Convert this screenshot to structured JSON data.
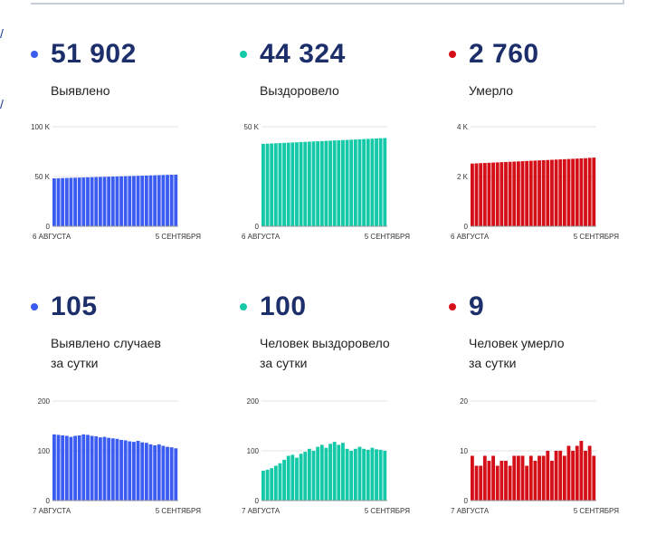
{
  "panels": [
    {
      "value": "51 902",
      "label": [
        "Выявлено"
      ],
      "color": "#3b5cf0",
      "chart_data": {
        "type": "bar",
        "title": "Выявлено",
        "yticks": [
          "100 K",
          "50 K",
          "0"
        ],
        "ylim": [
          0,
          100000
        ],
        "xstart": "6 АВГУСТА",
        "xend": "5 СЕНТЯБРЯ",
        "values": [
          48150,
          48280,
          48410,
          48540,
          48670,
          48800,
          48930,
          49060,
          49190,
          49320,
          49450,
          49580,
          49710,
          49840,
          49970,
          50100,
          50230,
          50360,
          50490,
          50620,
          50750,
          50880,
          51010,
          51140,
          51270,
          51400,
          51530,
          51660,
          51800,
          51902
        ]
      }
    },
    {
      "value": "44 324",
      "label": [
        "Выздоровело"
      ],
      "color": "#13c9a7",
      "chart_data": {
        "type": "bar",
        "title": "Выздоровело",
        "yticks": [
          "50 K",
          "0"
        ],
        "ylim": [
          0,
          50000
        ],
        "xstart": "6 АВГУСТА",
        "xend": "5 СЕНТЯБРЯ",
        "values": [
          41400,
          41500,
          41600,
          41700,
          41800,
          41900,
          42000,
          42100,
          42200,
          42300,
          42400,
          42500,
          42600,
          42700,
          42800,
          42900,
          43000,
          43100,
          43200,
          43300,
          43400,
          43500,
          43600,
          43700,
          43800,
          43900,
          44000,
          44100,
          44224,
          44324
        ]
      }
    },
    {
      "value": "2 760",
      "label": [
        "Умерло"
      ],
      "color": "#d40f17",
      "chart_data": {
        "type": "bar",
        "title": "Умерло",
        "yticks": [
          "4 K",
          "2 K",
          "0"
        ],
        "ylim": [
          0,
          4000
        ],
        "xstart": "6 АВГУСТА",
        "xend": "5 СЕНТЯБРЯ",
        "values": [
          2520,
          2528,
          2536,
          2544,
          2552,
          2560,
          2568,
          2576,
          2584,
          2592,
          2600,
          2608,
          2616,
          2624,
          2632,
          2640,
          2648,
          2656,
          2664,
          2672,
          2680,
          2688,
          2696,
          2704,
          2712,
          2720,
          2728,
          2736,
          2751,
          2760
        ]
      }
    },
    {
      "value": "105",
      "label": [
        "Выявлено случаев",
        "за сутки"
      ],
      "color": "#3b5cf0",
      "chart_data": {
        "type": "bar",
        "title": "Выявлено случаев за сутки",
        "yticks": [
          "200",
          "100",
          "0"
        ],
        "ylim": [
          0,
          200
        ],
        "xstart": "7 АВГУСТА",
        "xend": "5 СЕНТЯБРЯ",
        "values": [
          133,
          132,
          131,
          130,
          128,
          130,
          131,
          133,
          132,
          130,
          129,
          127,
          128,
          126,
          125,
          124,
          122,
          121,
          119,
          118,
          120,
          117,
          116,
          113,
          111,
          113,
          110,
          108,
          107,
          105
        ]
      }
    },
    {
      "value": "100",
      "label": [
        "Человек выздоровело",
        "за сутки"
      ],
      "color": "#13c9a7",
      "chart_data": {
        "type": "bar",
        "title": "Человек выздоровело за сутки",
        "yticks": [
          "200",
          "100",
          "0"
        ],
        "ylim": [
          0,
          200
        ],
        "xstart": "7 АВГУСТА",
        "xend": "5 СЕНТЯБРЯ",
        "values": [
          60,
          62,
          65,
          70,
          75,
          82,
          90,
          92,
          86,
          94,
          98,
          104,
          100,
          108,
          112,
          106,
          114,
          118,
          112,
          116,
          104,
          100,
          104,
          108,
          104,
          102,
          106,
          103,
          102,
          100
        ]
      }
    },
    {
      "value": "9",
      "label": [
        "Человек умерло",
        "за сутки"
      ],
      "color": "#d40f17",
      "chart_data": {
        "type": "bar",
        "title": "Человек умерло за сутки",
        "yticks": [
          "20",
          "10",
          "0"
        ],
        "ylim": [
          0,
          20
        ],
        "xstart": "7 АВГУСТА",
        "xend": "5 СЕНТЯБРЯ",
        "values": [
          9,
          7,
          7,
          9,
          8,
          9,
          7,
          8,
          8,
          7,
          9,
          9,
          9,
          7,
          9,
          8,
          9,
          9,
          10,
          8,
          10,
          10,
          9,
          11,
          10,
          11,
          12,
          10,
          11,
          9
        ]
      }
    }
  ]
}
